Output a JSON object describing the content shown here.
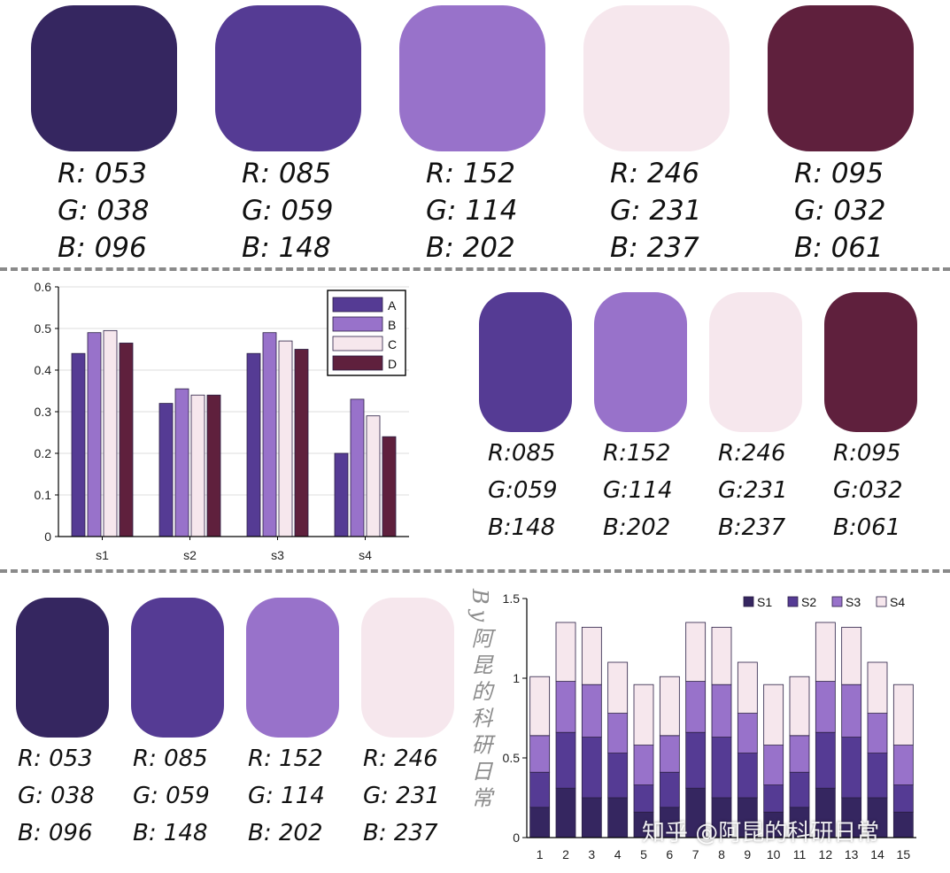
{
  "palette_top": [
    {
      "color": "#352660",
      "r": "R: 053",
      "g": "G: 038",
      "b": "B: 096"
    },
    {
      "color": "#553B94",
      "r": "R: 085",
      "g": "G: 059",
      "b": "B: 148"
    },
    {
      "color": "#9872CA",
      "r": "R: 152",
      "g": "G: 114",
      "b": "B: 202"
    },
    {
      "color": "#F6E7ED",
      "r": "R: 246",
      "g": "G: 231",
      "b": "B: 237"
    },
    {
      "color": "#5F203D",
      "r": "R: 095",
      "g": "G: 032",
      "b": "B: 061"
    }
  ],
  "palette_mid": [
    {
      "color": "#553B94",
      "r": "R:085",
      "g": "G:059",
      "b": "B:148"
    },
    {
      "color": "#9872CA",
      "r": "R:152",
      "g": "G:114",
      "b": "B:202"
    },
    {
      "color": "#F6E7ED",
      "r": "R:246",
      "g": "G:231",
      "b": "B:237"
    },
    {
      "color": "#5F203D",
      "r": "R:095",
      "g": "G:032",
      "b": "B:061"
    }
  ],
  "palette_bottom": [
    {
      "color": "#352660",
      "r": "R: 053",
      "g": "G: 038",
      "b": "B: 096"
    },
    {
      "color": "#553B94",
      "r": "R: 085",
      "g": "G: 059",
      "b": "B: 148"
    },
    {
      "color": "#9872CA",
      "r": "R: 152",
      "g": "G: 114",
      "b": "B: 202"
    },
    {
      "color": "#F6E7ED",
      "r": "R: 246",
      "g": "G: 231",
      "b": "B: 237"
    }
  ],
  "watermark_side": "By阿昆的科研日常",
  "watermark_bottom": "知乎 @阿昆的科研日常",
  "chart_data": [
    {
      "type": "bar",
      "categories": [
        "s1",
        "s2",
        "s3",
        "s4"
      ],
      "series": [
        {
          "name": "A",
          "color": "#553B94",
          "values": [
            0.44,
            0.32,
            0.44,
            0.2
          ]
        },
        {
          "name": "B",
          "color": "#9872CA",
          "values": [
            0.49,
            0.355,
            0.49,
            0.33
          ]
        },
        {
          "name": "C",
          "color": "#F6E7ED",
          "values": [
            0.495,
            0.34,
            0.47,
            0.29
          ]
        },
        {
          "name": "D",
          "color": "#5F203D",
          "values": [
            0.465,
            0.34,
            0.45,
            0.24
          ]
        }
      ],
      "ylim": [
        0,
        0.6
      ],
      "yticks": [
        "0",
        "0.1",
        "0.2",
        "0.3",
        "0.4",
        "0.5",
        "0.6"
      ],
      "grid": true,
      "legend": "top-right"
    },
    {
      "type": "bar",
      "stacked": true,
      "categories": [
        "1",
        "2",
        "3",
        "4",
        "5",
        "6",
        "7",
        "8",
        "9",
        "10",
        "11",
        "12",
        "13",
        "14",
        "15"
      ],
      "series": [
        {
          "name": "S1",
          "color": "#352660",
          "values": [
            0.19,
            0.31,
            0.25,
            0.25,
            0.16,
            0.19,
            0.31,
            0.25,
            0.25,
            0.16,
            0.19,
            0.31,
            0.25,
            0.25,
            0.16
          ]
        },
        {
          "name": "S2",
          "color": "#553B94",
          "values": [
            0.22,
            0.35,
            0.38,
            0.28,
            0.17,
            0.22,
            0.35,
            0.38,
            0.28,
            0.17,
            0.22,
            0.35,
            0.38,
            0.28,
            0.17
          ]
        },
        {
          "name": "S3",
          "color": "#9872CA",
          "values": [
            0.23,
            0.32,
            0.33,
            0.25,
            0.25,
            0.23,
            0.32,
            0.33,
            0.25,
            0.25,
            0.23,
            0.32,
            0.33,
            0.25,
            0.25
          ]
        },
        {
          "name": "S4",
          "color": "#F6E7ED",
          "values": [
            0.37,
            0.37,
            0.36,
            0.32,
            0.38,
            0.37,
            0.37,
            0.36,
            0.32,
            0.38,
            0.37,
            0.37,
            0.36,
            0.32,
            0.38
          ]
        }
      ],
      "ylim": [
        0,
        1.5
      ],
      "yticks": [
        "0",
        "0.5",
        "1",
        "1.5"
      ],
      "grid": false,
      "legend": "top-right"
    }
  ]
}
